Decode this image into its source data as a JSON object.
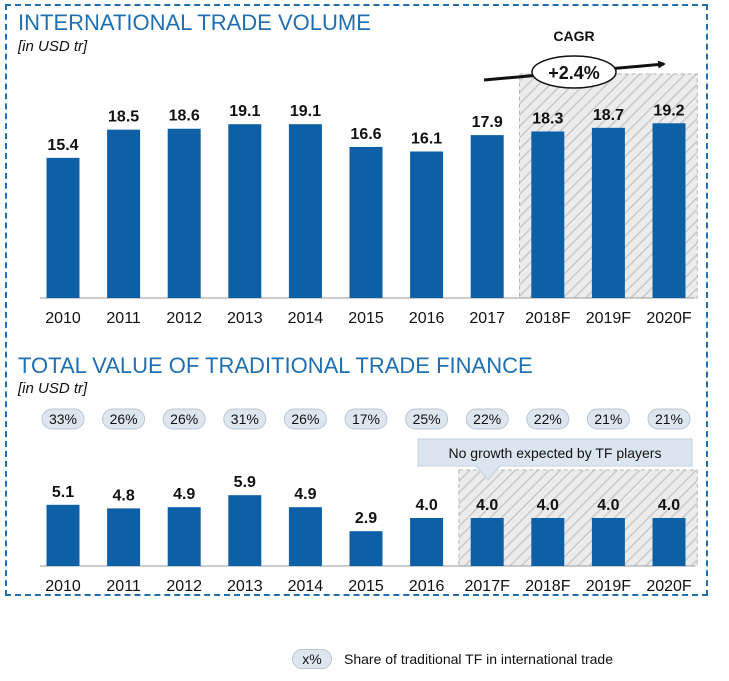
{
  "colors": {
    "bar": "#0d5fa6",
    "accent": "#1f6fb2",
    "forecast_fill": "#ececec",
    "pill": "#dde6ee",
    "callout": "#dbe5ef"
  },
  "chart_data": [
    {
      "type": "bar",
      "title": "INTERNATIONAL TRADE VOLUME",
      "unit": "[in USD tr]",
      "categories": [
        "2010",
        "2011",
        "2012",
        "2013",
        "2014",
        "2015",
        "2016",
        "2017",
        "2018F",
        "2019F",
        "2020F"
      ],
      "values": [
        15.4,
        18.5,
        18.6,
        19.1,
        19.1,
        16.6,
        16.1,
        17.9,
        18.3,
        18.7,
        19.2
      ],
      "value_labels": [
        "15.4",
        "18.5",
        "18.6",
        "19.1",
        "19.1",
        "16.6",
        "16.1",
        "17.9",
        "18.3",
        "18.7",
        "19.2"
      ],
      "forecast_categories": [
        "2018F",
        "2019F",
        "2020F"
      ],
      "cagr": {
        "label": "CAGR",
        "value": "+2.4%"
      },
      "grid": false
    },
    {
      "type": "bar",
      "title": "TOTAL VALUE OF TRADITIONAL TRADE FINANCE",
      "unit": "[in USD tr]",
      "categories": [
        "2010",
        "2011",
        "2012",
        "2013",
        "2014",
        "2015",
        "2016",
        "2017F",
        "2018F",
        "2019F",
        "2020F"
      ],
      "values": [
        5.1,
        4.8,
        4.9,
        5.9,
        4.9,
        2.9,
        4.0,
        4.0,
        4.0,
        4.0,
        4.0
      ],
      "value_labels": [
        "5.1",
        "4.8",
        "4.9",
        "5.9",
        "4.9",
        "2.9",
        "4.0",
        "4.0",
        "4.0",
        "4.0",
        "4.0"
      ],
      "shares": [
        "33%",
        "26%",
        "26%",
        "31%",
        "26%",
        "17%",
        "25%",
        "22%",
        "22%",
        "21%",
        "21%"
      ],
      "forecast_categories": [
        "2017F",
        "2018F",
        "2019F",
        "2020F"
      ],
      "callout": "No growth expected by TF players",
      "grid": false
    }
  ],
  "legend": {
    "symbol": "x%",
    "text": "Share of traditional TF in international trade"
  }
}
